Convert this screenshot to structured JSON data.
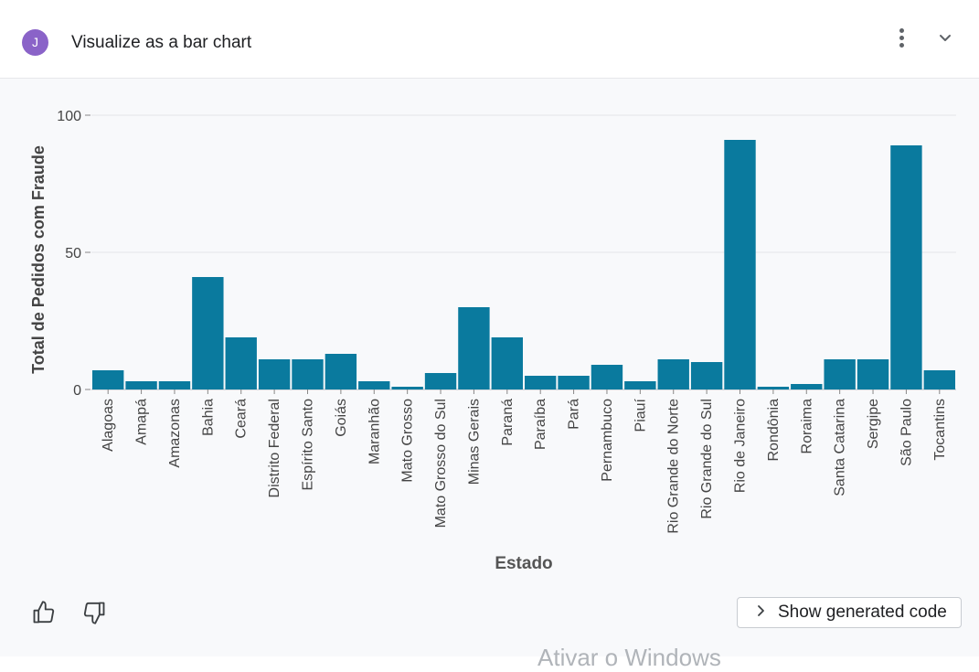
{
  "header": {
    "avatar_initial": "J",
    "title": "Visualize as a bar chart"
  },
  "footer": {
    "show_code_label": "Show generated code"
  },
  "watermark": "Ativar o Windows",
  "colors": {
    "bar": "#0a7a9e",
    "avatar": "#8a63c8"
  },
  "chart_data": {
    "type": "bar",
    "categories": [
      "Alagoas",
      "Amapá",
      "Amazonas",
      "Bahia",
      "Ceará",
      "Distrito Federal",
      "Espírito Santo",
      "Goiás",
      "Maranhão",
      "Mato Grosso",
      "Mato Grosso do Sul",
      "Minas Gerais",
      "Paraná",
      "Paraíba",
      "Pará",
      "Pernambuco",
      "Piauí",
      "Rio Grande do Norte",
      "Rio Grande do Sul",
      "Rio de Janeiro",
      "Rondônia",
      "Roraima",
      "Santa Catarina",
      "Sergipe",
      "São Paulo",
      "Tocantins"
    ],
    "values": [
      7,
      3,
      3,
      41,
      19,
      11,
      11,
      13,
      3,
      1,
      6,
      30,
      19,
      5,
      5,
      9,
      3,
      11,
      10,
      91,
      1,
      2,
      11,
      11,
      89,
      7
    ],
    "xlabel": "Estado",
    "ylabel": "Total de Pedidos com Fraude",
    "ylim": [
      0,
      100
    ],
    "yticks": [
      0,
      50,
      100
    ],
    "grid": true
  }
}
